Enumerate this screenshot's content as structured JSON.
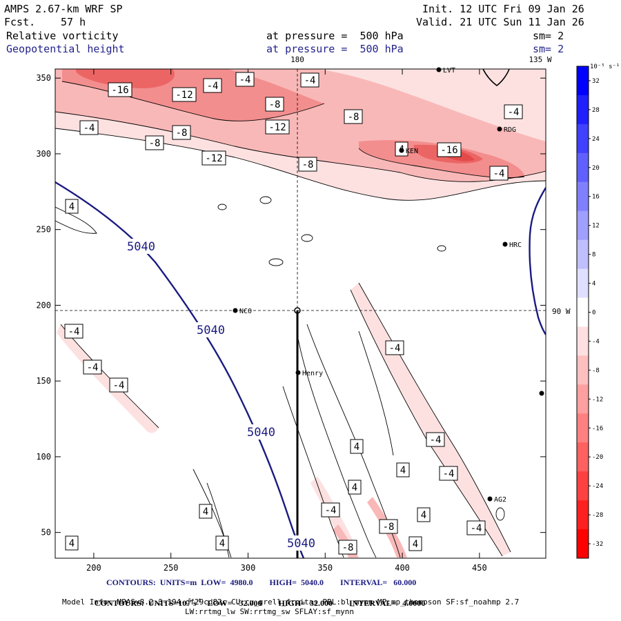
{
  "header": {
    "model": "AMPS 2.67-km WRF SP",
    "fcst_label": "Fcst.",
    "fcst_value": "57 h",
    "init": "Init. 12 UTC Fri 09 Jan 26",
    "valid": "Valid. 21 UTC Sun 11 Jan 26",
    "field1": "Relative vorticity",
    "field2": "Geopotential height",
    "pressure1": "at pressure =  500 hPa",
    "pressure2": "at pressure =  500 hPa",
    "sm1": "sm= 2",
    "sm2": "sm= 2"
  },
  "chart_data": {
    "type": "heatmap",
    "x_ticks": [
      200,
      250,
      300,
      350,
      400,
      450
    ],
    "y_ticks": [
      50,
      100,
      150,
      200,
      250,
      300,
      350
    ],
    "xlim": [
      175,
      493
    ],
    "ylim": [
      33,
      356
    ],
    "grid_lines": {
      "x": 335,
      "y": 196,
      "x_label": "180",
      "y_label": "90 W",
      "corner_label": "135 W"
    },
    "colorbar": {
      "unit_label": "10⁻⁵ s⁻¹",
      "ticks": [
        32,
        28,
        24,
        20,
        16,
        12,
        8,
        4,
        0,
        -4,
        -8,
        -12,
        -16,
        -20,
        -24,
        -28,
        -32
      ],
      "min": -34,
      "max": 34
    },
    "geopotential_labels": [
      "5040",
      "5040",
      "5040",
      "5040"
    ],
    "vorticity_labels": [
      "-16",
      "-12",
      "-4",
      "-4",
      "-4",
      "-8",
      "-4",
      "-8",
      "-12",
      "-8",
      "-4",
      "-16",
      "-8",
      "-8",
      "-12",
      "4",
      "-4",
      "-4",
      "-4",
      "-4",
      "-4",
      "4",
      "4",
      "4",
      "4",
      "4",
      "4",
      "-4",
      "-4",
      "-4",
      "-8",
      "-8",
      "4",
      "4",
      "4",
      "-4"
    ],
    "stations": [
      "LVT",
      "RDG",
      "KEN",
      "HRC",
      "NCO",
      "Henry",
      "AG2"
    ]
  },
  "footer": {
    "line1": "CONTOURS:  UNITS=m  LOW=  4980.0        HIGH=  5040.0        INTERVAL=   60.000",
    "line2a": "CONTOURS:  UNITS=10",
    "line2b": "-5",
    "line2c": " s",
    "line2d": "-1",
    "line2e": "   LOW=  -32.000        HIGH=  32.000        INTERVAL=   4.0000",
    "model_info": "Model Info: MPASv8.2.3-194-gf29cd82c CU:cu_grell_freitas PBL:bl_mynn MP:mp_thompson SF:sf_noahmp 2.7",
    "model_info2": "LW:rrtmg_lw SW:rrtmg_sw SFLAY:sf_mynn"
  }
}
